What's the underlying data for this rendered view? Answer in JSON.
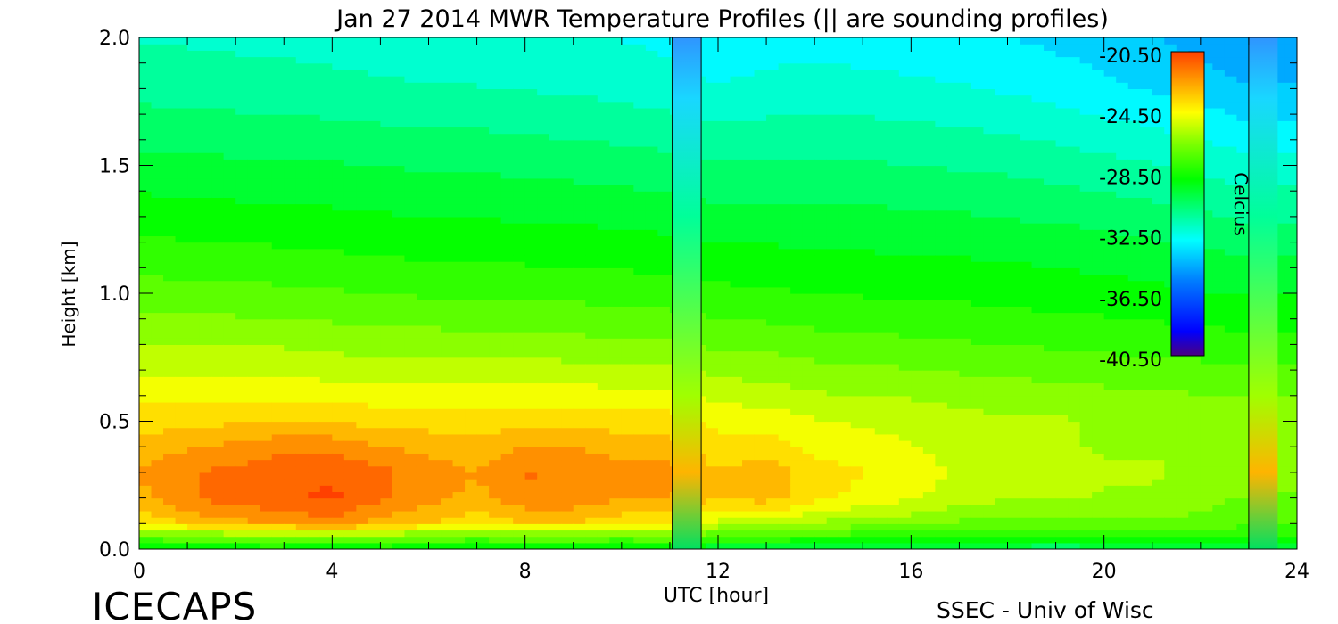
{
  "chart_data": {
    "type": "heatmap",
    "title": "Jan 27 2014 MWR Temperature Profiles (|| are sounding profiles)",
    "xlabel": "UTC [hour]",
    "ylabel": "Height [km]",
    "xlim": [
      0,
      24
    ],
    "ylim": [
      0.0,
      2.0
    ],
    "x_ticks": [
      "0",
      "4",
      "8",
      "12",
      "16",
      "20",
      "24"
    ],
    "y_ticks": [
      "0.0",
      "0.5",
      "1.0",
      "1.5",
      "2.0"
    ],
    "colorbar": {
      "label": "Celcius",
      "ticks": [
        "-20.50",
        "-24.50",
        "-28.50",
        "-32.50",
        "-36.50",
        "-40.50"
      ],
      "range": [
        -40.5,
        -20.5
      ]
    },
    "sounding_times": [
      11.05,
      11.65,
      23.0
    ],
    "missing_data_columns": [
      [
        11.05,
        11.65
      ],
      [
        23.0,
        23.6
      ]
    ],
    "hours": [
      0,
      1.5,
      3,
      4,
      5,
      6,
      7,
      8,
      9,
      10,
      11,
      12,
      13,
      14,
      15,
      16,
      17,
      18,
      19,
      20,
      21,
      22,
      23
    ],
    "heights_km": [
      0.0,
      0.05,
      0.1,
      0.2,
      0.3,
      0.4,
      0.5,
      0.6,
      0.8,
      1.0,
      1.2,
      1.5,
      1.8,
      2.0
    ],
    "temperature_celsius": [
      [
        -29.5,
        -29.0,
        -29.0,
        -29.5,
        -29.0,
        -29.0,
        -29.5,
        -29.0,
        -29.0,
        -29.5,
        -29.0,
        -30.0,
        -30.0,
        -30.5,
        -30.5,
        -30.5,
        -30.5,
        -30.5,
        -31.0,
        -30.5,
        -30.5,
        -30.5,
        -30.5
      ],
      [
        -27.0,
        -27.0,
        -26.5,
        -26.5,
        -26.5,
        -27.0,
        -27.0,
        -27.0,
        -27.0,
        -27.0,
        -27.0,
        -27.5,
        -27.5,
        -28.0,
        -28.0,
        -28.0,
        -28.0,
        -28.0,
        -28.0,
        -28.0,
        -28.0,
        -28.0,
        -28.5
      ],
      [
        -24.0,
        -23.0,
        -22.5,
        -22.0,
        -23.0,
        -23.5,
        -24.0,
        -23.5,
        -23.5,
        -24.0,
        -24.0,
        -25.5,
        -25.5,
        -26.0,
        -26.5,
        -26.5,
        -27.0,
        -27.0,
        -27.0,
        -27.0,
        -27.0,
        -27.0,
        -27.5
      ],
      [
        -22.8,
        -21.5,
        -21.0,
        -20.8,
        -21.5,
        -22.3,
        -22.8,
        -22.0,
        -22.0,
        -22.5,
        -22.5,
        -23.5,
        -23.0,
        -24.0,
        -24.5,
        -25.0,
        -25.5,
        -25.8,
        -25.8,
        -26.0,
        -26.0,
        -26.5,
        -26.8
      ],
      [
        -22.6,
        -21.6,
        -21.2,
        -21.0,
        -21.5,
        -22.2,
        -22.6,
        -21.7,
        -21.8,
        -22.2,
        -22.2,
        -23.3,
        -22.8,
        -23.8,
        -24.2,
        -24.7,
        -25.2,
        -25.5,
        -25.5,
        -25.8,
        -25.8,
        -26.2,
        -26.5
      ],
      [
        -23.0,
        -22.5,
        -22.0,
        -22.0,
        -22.5,
        -22.8,
        -23.0,
        -22.5,
        -22.5,
        -23.0,
        -23.0,
        -24.0,
        -23.8,
        -24.5,
        -24.8,
        -25.0,
        -25.5,
        -25.8,
        -25.8,
        -26.0,
        -26.0,
        -26.2,
        -26.5
      ],
      [
        -23.8,
        -23.6,
        -23.4,
        -23.5,
        -23.7,
        -23.8,
        -23.9,
        -23.8,
        -23.7,
        -23.8,
        -23.9,
        -24.5,
        -24.6,
        -25.0,
        -25.2,
        -25.4,
        -25.6,
        -25.8,
        -25.8,
        -26.0,
        -26.0,
        -26.2,
        -26.4
      ],
      [
        -24.5,
        -24.5,
        -24.5,
        -24.6,
        -24.6,
        -24.7,
        -24.7,
        -24.7,
        -24.7,
        -24.8,
        -24.8,
        -25.3,
        -25.5,
        -25.8,
        -25.9,
        -26.0,
        -26.2,
        -26.3,
        -26.4,
        -26.5,
        -26.6,
        -26.7,
        -26.8
      ],
      [
        -26.0,
        -26.0,
        -26.0,
        -26.2,
        -26.3,
        -26.3,
        -26.4,
        -26.4,
        -26.5,
        -26.5,
        -26.6,
        -27.0,
        -27.0,
        -27.2,
        -27.3,
        -27.4,
        -27.5,
        -27.6,
        -27.7,
        -27.8,
        -27.9,
        -28.0,
        -28.1
      ],
      [
        -27.2,
        -27.3,
        -27.4,
        -27.5,
        -27.6,
        -27.7,
        -27.7,
        -27.8,
        -27.8,
        -27.9,
        -28.0,
        -28.2,
        -28.3,
        -28.4,
        -28.5,
        -28.5,
        -28.6,
        -28.7,
        -28.8,
        -28.9,
        -29.0,
        -29.2,
        -29.3
      ],
      [
        -28.3,
        -28.4,
        -28.5,
        -28.6,
        -28.7,
        -28.8,
        -28.8,
        -28.9,
        -28.9,
        -29.0,
        -29.1,
        -29.3,
        -29.3,
        -29.4,
        -29.4,
        -29.5,
        -29.5,
        -29.6,
        -29.7,
        -29.8,
        -30.0,
        -30.2,
        -30.4
      ],
      [
        -29.8,
        -29.9,
        -30.0,
        -30.0,
        -30.1,
        -30.2,
        -30.2,
        -30.3,
        -30.4,
        -30.5,
        -30.6,
        -30.8,
        -30.8,
        -30.8,
        -30.8,
        -30.9,
        -31.0,
        -31.1,
        -31.3,
        -31.5,
        -31.7,
        -32.0,
        -32.3
      ],
      [
        -31.2,
        -31.3,
        -31.4,
        -31.5,
        -31.6,
        -31.7,
        -31.7,
        -31.8,
        -31.9,
        -32.0,
        -32.2,
        -32.5,
        -32.3,
        -32.2,
        -32.3,
        -32.4,
        -32.5,
        -32.7,
        -32.9,
        -33.2,
        -33.5,
        -33.8,
        -34.2
      ],
      [
        -31.8,
        -31.9,
        -32.0,
        -32.1,
        -32.2,
        -32.3,
        -32.3,
        -32.4,
        -32.5,
        -32.6,
        -32.8,
        -33.2,
        -33.0,
        -32.9,
        -33.0,
        -33.1,
        -33.2,
        -33.4,
        -33.6,
        -33.9,
        -34.2,
        -34.6,
        -35.0
      ]
    ]
  },
  "footer": {
    "left": "ICECAPS",
    "right": "SSEC - Univ of Wisc"
  }
}
